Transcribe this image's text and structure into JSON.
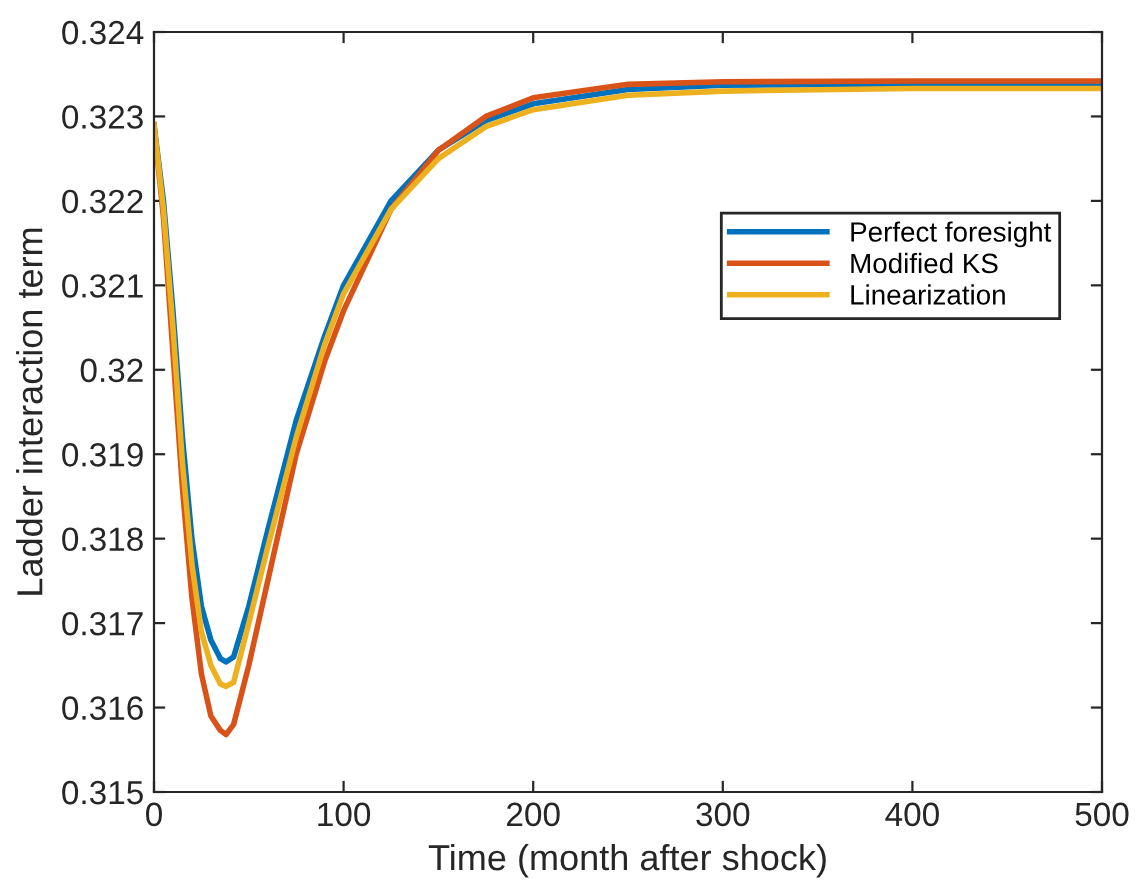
{
  "chart_data": {
    "type": "line",
    "xlabel": "Time (month after shock)",
    "ylabel": "Ladder interaction term",
    "x": [
      0,
      5,
      10,
      15,
      20,
      25,
      30,
      35,
      38,
      42,
      50,
      60,
      75,
      90,
      100,
      125,
      150,
      175,
      200,
      250,
      300,
      400,
      500
    ],
    "series": [
      {
        "name": "Perfect foresight",
        "color": "#0072bd",
        "values": [
          0.3229,
          0.322,
          0.3207,
          0.3192,
          0.318,
          0.3172,
          0.3168,
          0.31658,
          0.31654,
          0.3166,
          0.3172,
          0.3181,
          0.3194,
          0.3204,
          0.321,
          0.322,
          0.3226,
          0.32295,
          0.32315,
          0.32332,
          0.32337,
          0.32338,
          0.32338
        ]
      },
      {
        "name": "Modified KS",
        "color": "#d95319",
        "values": [
          0.3229,
          0.3218,
          0.3202,
          0.3186,
          0.3173,
          0.3164,
          0.3159,
          0.31573,
          0.31568,
          0.3158,
          0.3165,
          0.3175,
          0.319,
          0.3201,
          0.3207,
          0.3219,
          0.3226,
          0.323,
          0.32322,
          0.32338,
          0.32341,
          0.32342,
          0.32342
        ]
      },
      {
        "name": "Linearization",
        "color": "#edb120",
        "values": [
          0.3229,
          0.3219,
          0.3205,
          0.3189,
          0.3177,
          0.3169,
          0.3165,
          0.31628,
          0.31625,
          0.3163,
          0.317,
          0.3179,
          0.3192,
          0.3203,
          0.3209,
          0.3219,
          0.3225,
          0.32288,
          0.32308,
          0.32325,
          0.3233,
          0.32333,
          0.32333
        ]
      }
    ],
    "xlim": [
      0,
      500
    ],
    "xticks": [
      0,
      100,
      200,
      300,
      400,
      500
    ],
    "ylim": [
      0.315,
      0.324
    ],
    "yticks": [
      0.315,
      0.316,
      0.317,
      0.318,
      0.319,
      0.32,
      0.321,
      0.322,
      0.323,
      0.324
    ],
    "grid": false,
    "legend": "right",
    "marker": "none",
    "line_style": "solid"
  }
}
